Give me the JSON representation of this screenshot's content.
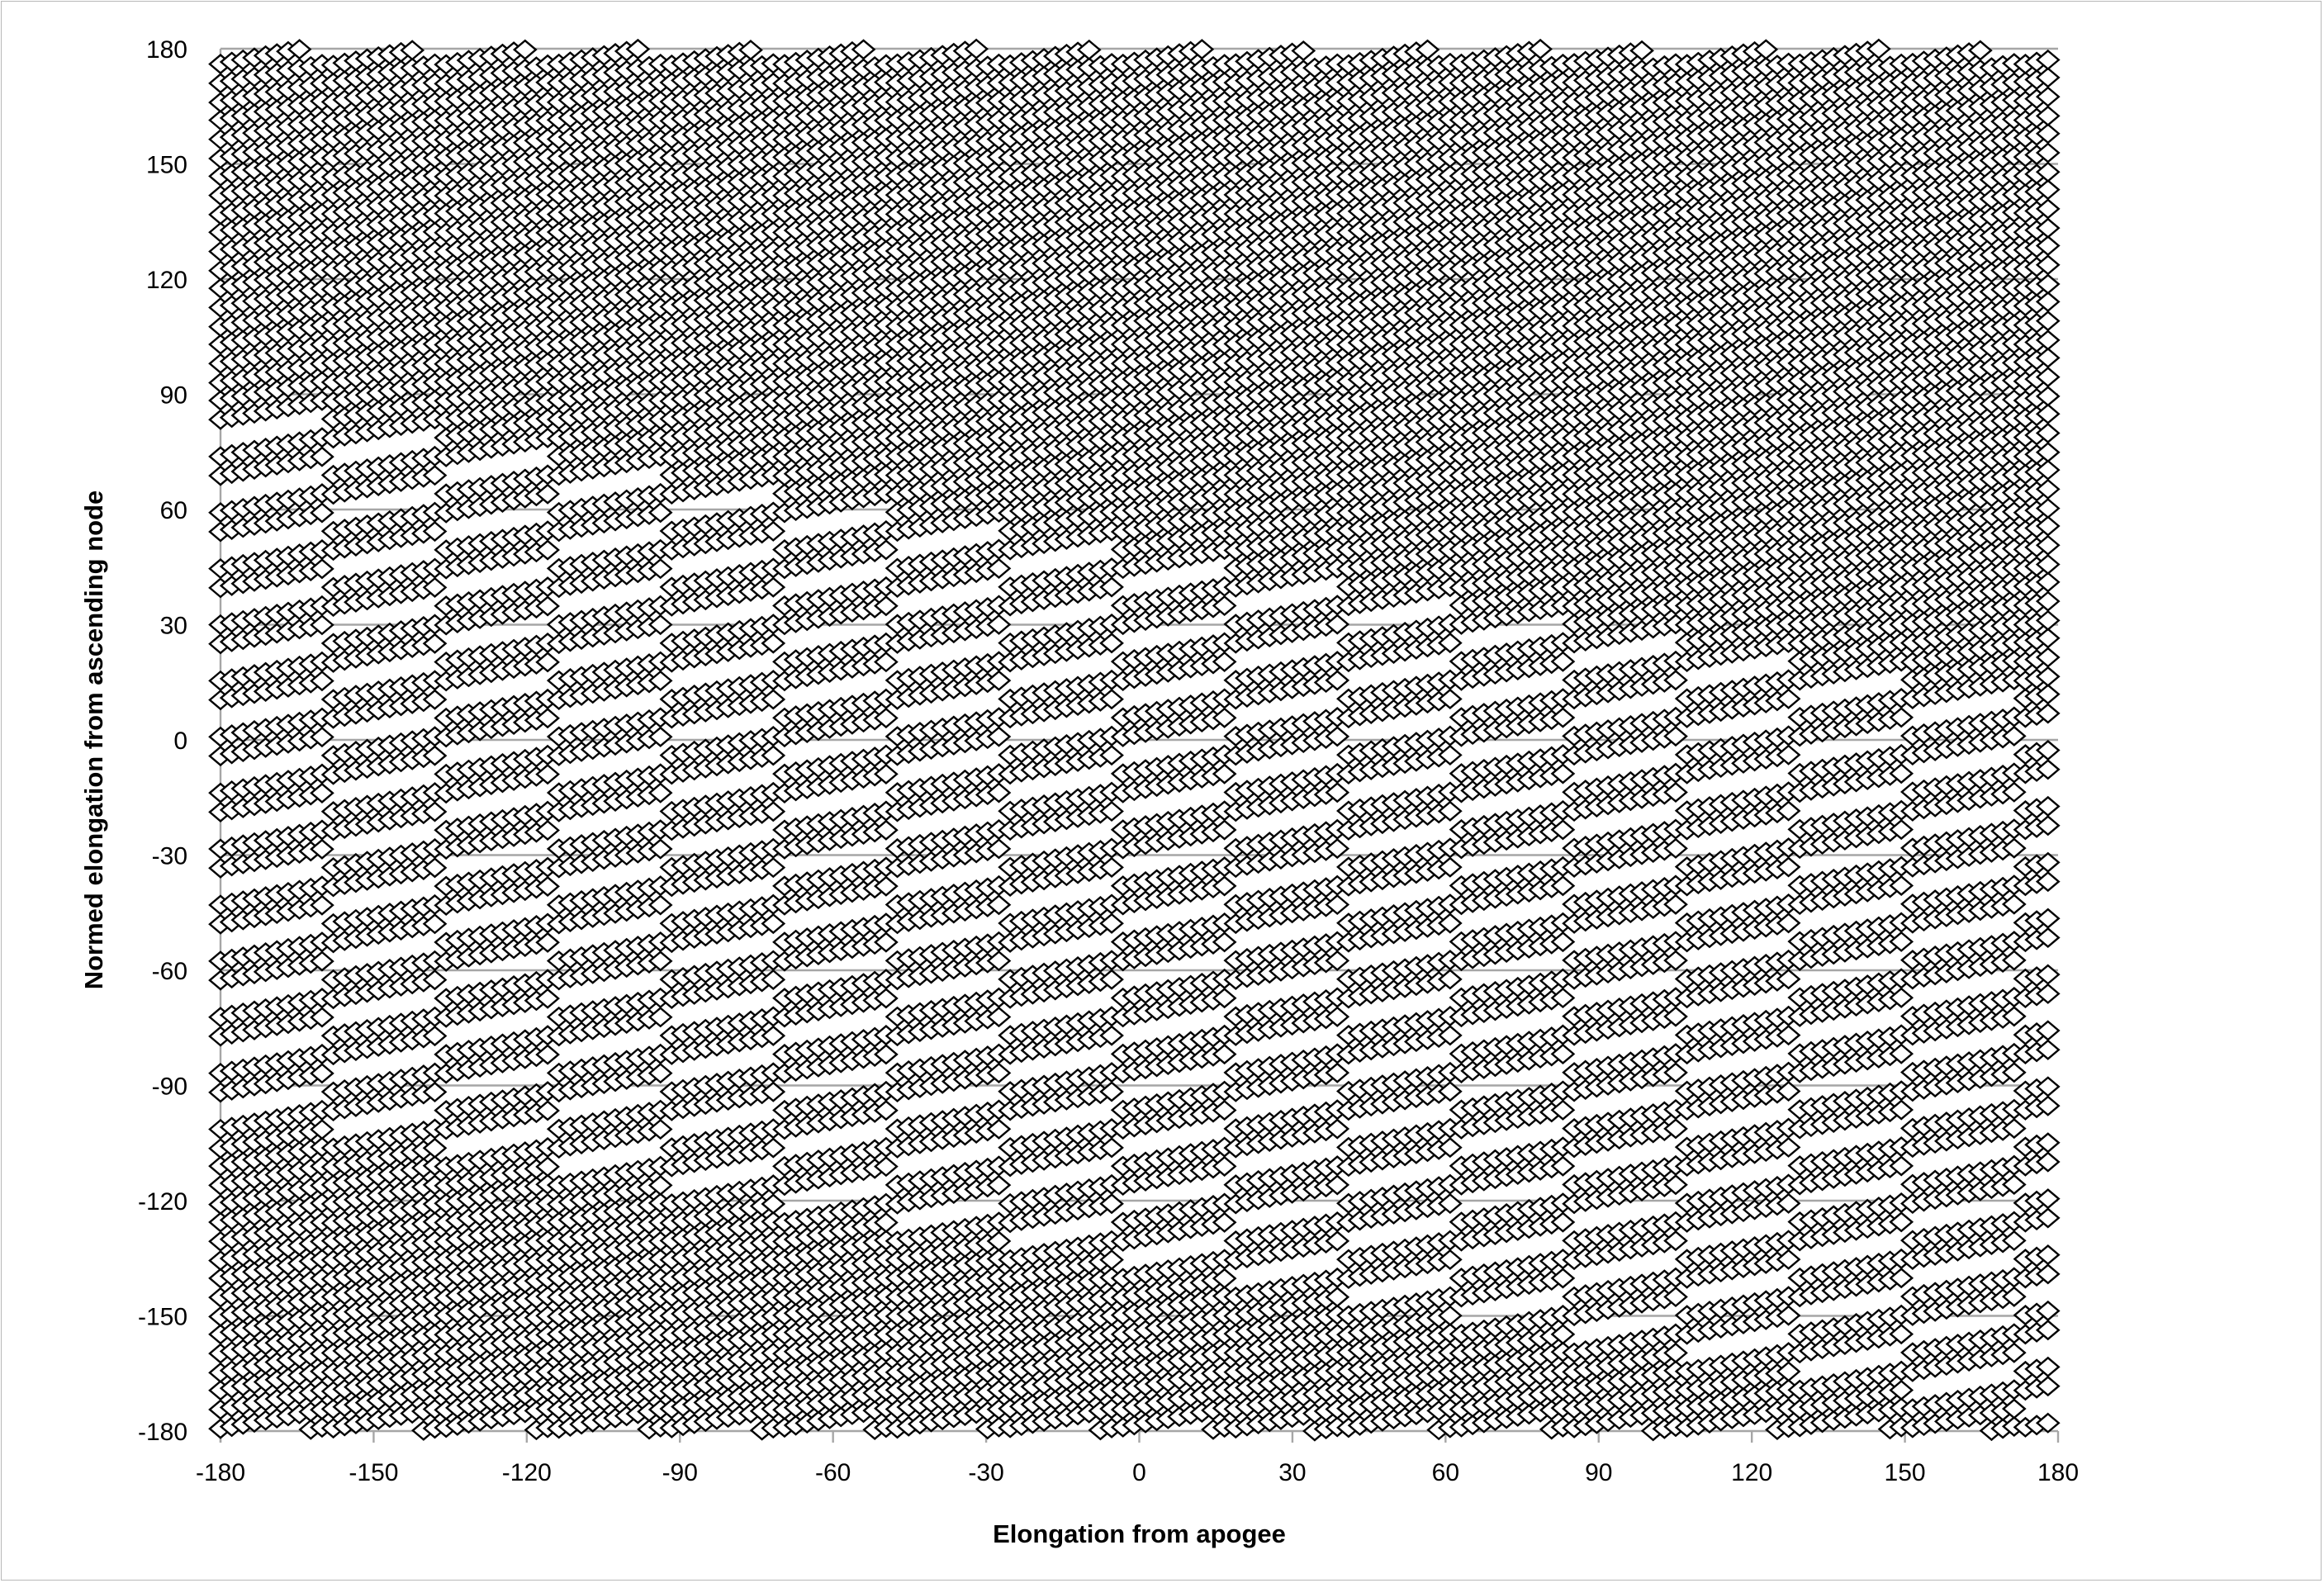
{
  "chart_data": {
    "type": "scatter",
    "title": "",
    "xlabel": "Elongation from apogee",
    "ylabel": "Normed elongation from ascending node",
    "xlim": [
      -180,
      180
    ],
    "ylim": [
      -180,
      180
    ],
    "xticks": [
      "-180",
      "-150",
      "-120",
      "-90",
      "-60",
      "-30",
      "0",
      "30",
      "60",
      "90",
      "120",
      "150",
      "180"
    ],
    "yticks": [
      "180",
      "150",
      "120",
      "90",
      "60",
      "30",
      "0",
      "-30",
      "-60",
      "-90",
      "-120",
      "-150",
      "-180"
    ],
    "grid": "horizontal",
    "legend": "none",
    "marker": "open-diamond",
    "colors": {
      "marker_stroke": "#000000",
      "marker_fill": "#ffffff",
      "grid": "#a6a6a6"
    },
    "series": [
      {
        "pattern": "sheared lattice of short rising runs; y values wrap from 180 to -180",
        "x_step": 2.21,
        "run_points": 10,
        "run_dy": 0.55,
        "row_offset_deg": 14.6,
        "shift_per_run_deg": 4.85,
        "x_start": -180,
        "x_end": 180,
        "y_start": 171
      }
    ]
  }
}
